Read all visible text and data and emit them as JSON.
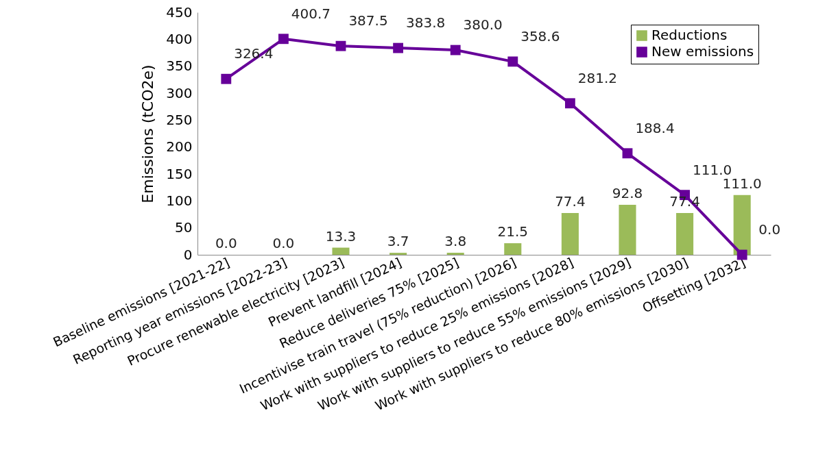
{
  "chart_data": {
    "type": "bar",
    "ylabel": "Emissions (tCO2e)",
    "categories": [
      "Baseline emissions [2021-22]",
      "Reporting year emissions [2022-23]",
      "Procure renewable electricity [2023]",
      "Prevent landfill [2024]",
      "Reduce deliveries 75% [2025]",
      "Incentivise train travel (75% reduction) [2026]",
      "Work with suppliers to reduce 25% emissions [2028]",
      "Work with suppliers to reduce 55% emissions [2029]",
      "Work with suppliers to reduce 80% emissions [2030]",
      "Offsetting [2032]"
    ],
    "series": [
      {
        "name": "Reductions",
        "color": "#9bbb59",
        "values": [
          0.0,
          0.0,
          13.3,
          3.7,
          3.8,
          21.5,
          77.4,
          92.8,
          77.4,
          111.0
        ],
        "value_labels": [
          "0.0",
          "0.0",
          "13.3",
          "3.7",
          "3.8",
          "21.5",
          "77.4",
          "92.8",
          "77.4",
          "111.0"
        ]
      },
      {
        "name": "New emissions",
        "type": "line",
        "color": "#660099",
        "values": [
          326.4,
          400.7,
          387.5,
          383.8,
          380.0,
          358.6,
          281.2,
          188.4,
          111.0,
          0.0
        ],
        "value_labels": [
          "326.4",
          "400.7",
          "387.5",
          "383.8",
          "380.0",
          "358.6",
          "281.2",
          "188.4",
          "111.0",
          "0.0"
        ]
      }
    ],
    "ylim": [
      0,
      450
    ],
    "yticks": [
      0,
      50,
      100,
      150,
      200,
      250,
      300,
      350,
      400,
      450
    ],
    "grid": false,
    "legend": "top right",
    "marker": "square",
    "line_style": "solid"
  }
}
